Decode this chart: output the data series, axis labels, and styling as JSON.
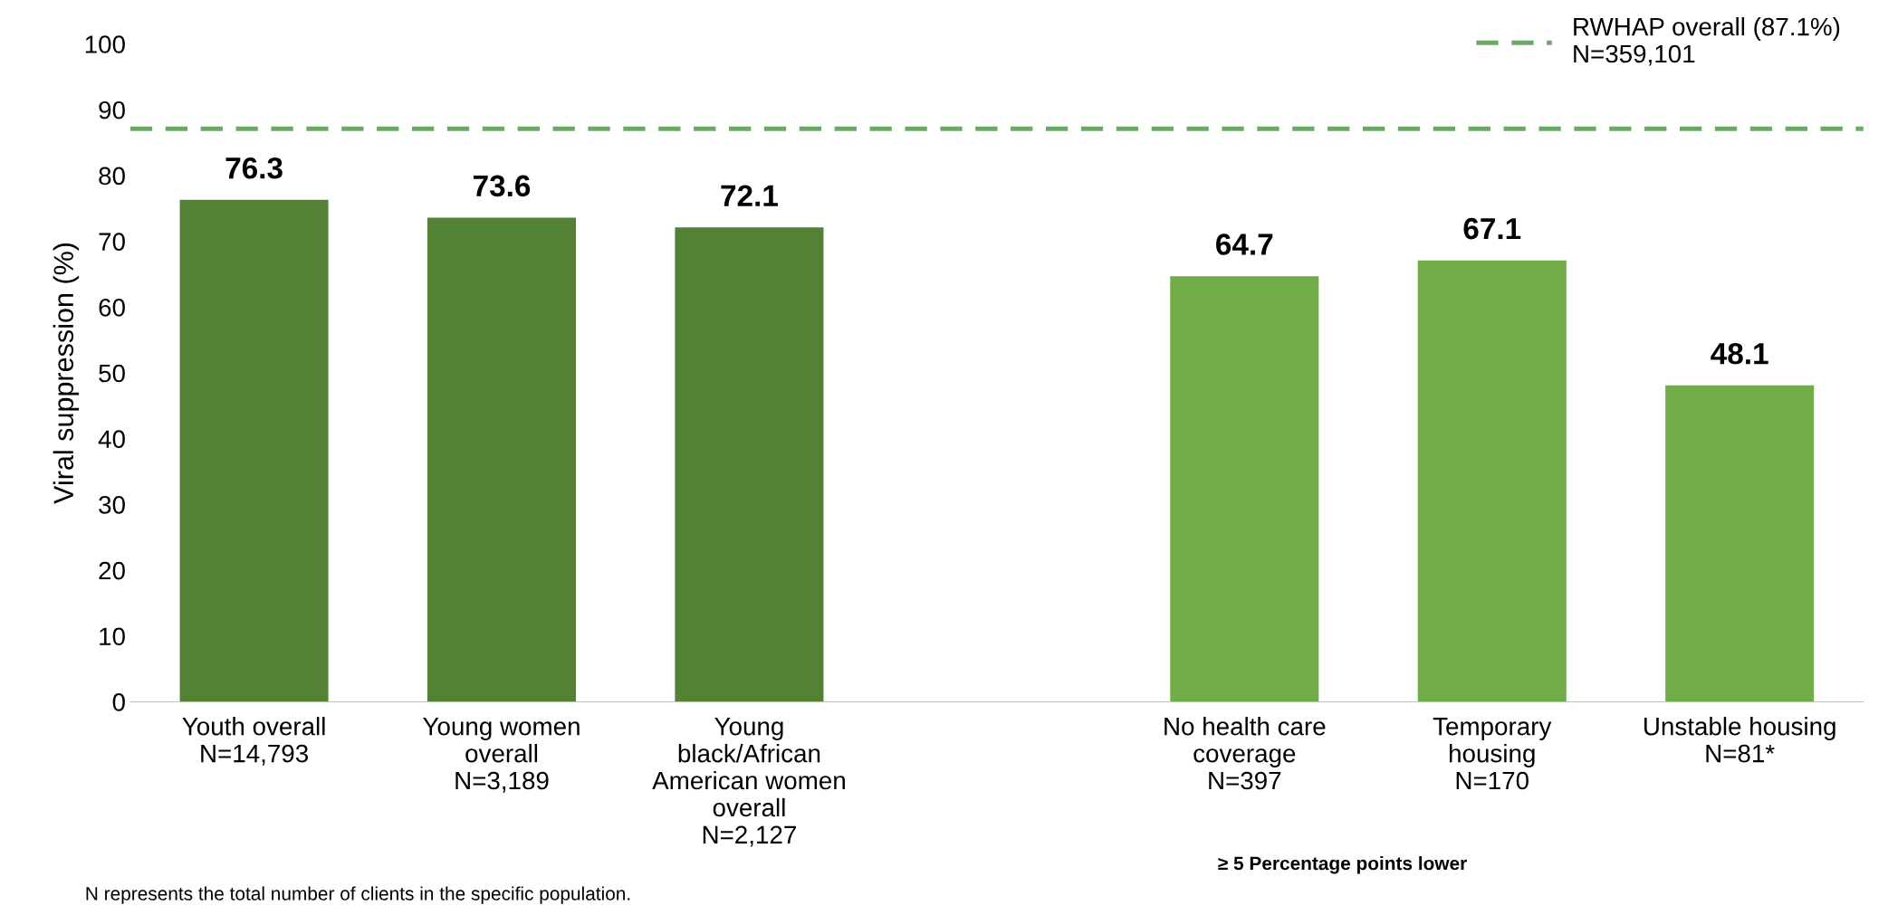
{
  "chart_data": {
    "type": "bar",
    "categories": [
      "Youth overall\nN=14,793",
      "Young women\noverall\nN=3,189",
      "Young\nblack/African\nAmerican women\noverall\nN=2,127",
      null,
      "No health care\ncoverage\nN=397",
      "Temporary\nhousing\nN=170",
      "Unstable housing\nN=81*"
    ],
    "values": [
      76.3,
      73.6,
      72.1,
      null,
      64.7,
      67.1,
      48.1
    ],
    "colors": [
      "#548235",
      "#548235",
      "#548235",
      "#548235",
      "#70ad47",
      "#70ad47",
      "#70ad47"
    ],
    "ylabel": "Viral suppression (%)",
    "ylim": [
      0,
      100
    ],
    "yticks": [
      0,
      10,
      20,
      30,
      40,
      50,
      60,
      70,
      80,
      90,
      100
    ],
    "grid": false,
    "data_labels": true,
    "legend": "top right",
    "ref_lines": [
      {
        "axis": "y",
        "value": 87.1,
        "label": "RWHAP overall (87.1%)\nN=359,101",
        "color": "#6aaa64",
        "line_style": "dashed"
      }
    ],
    "annotations": [
      "N represents the total number of clients in the specific population.",
      "≥ 5 Percentage points lower"
    ]
  }
}
